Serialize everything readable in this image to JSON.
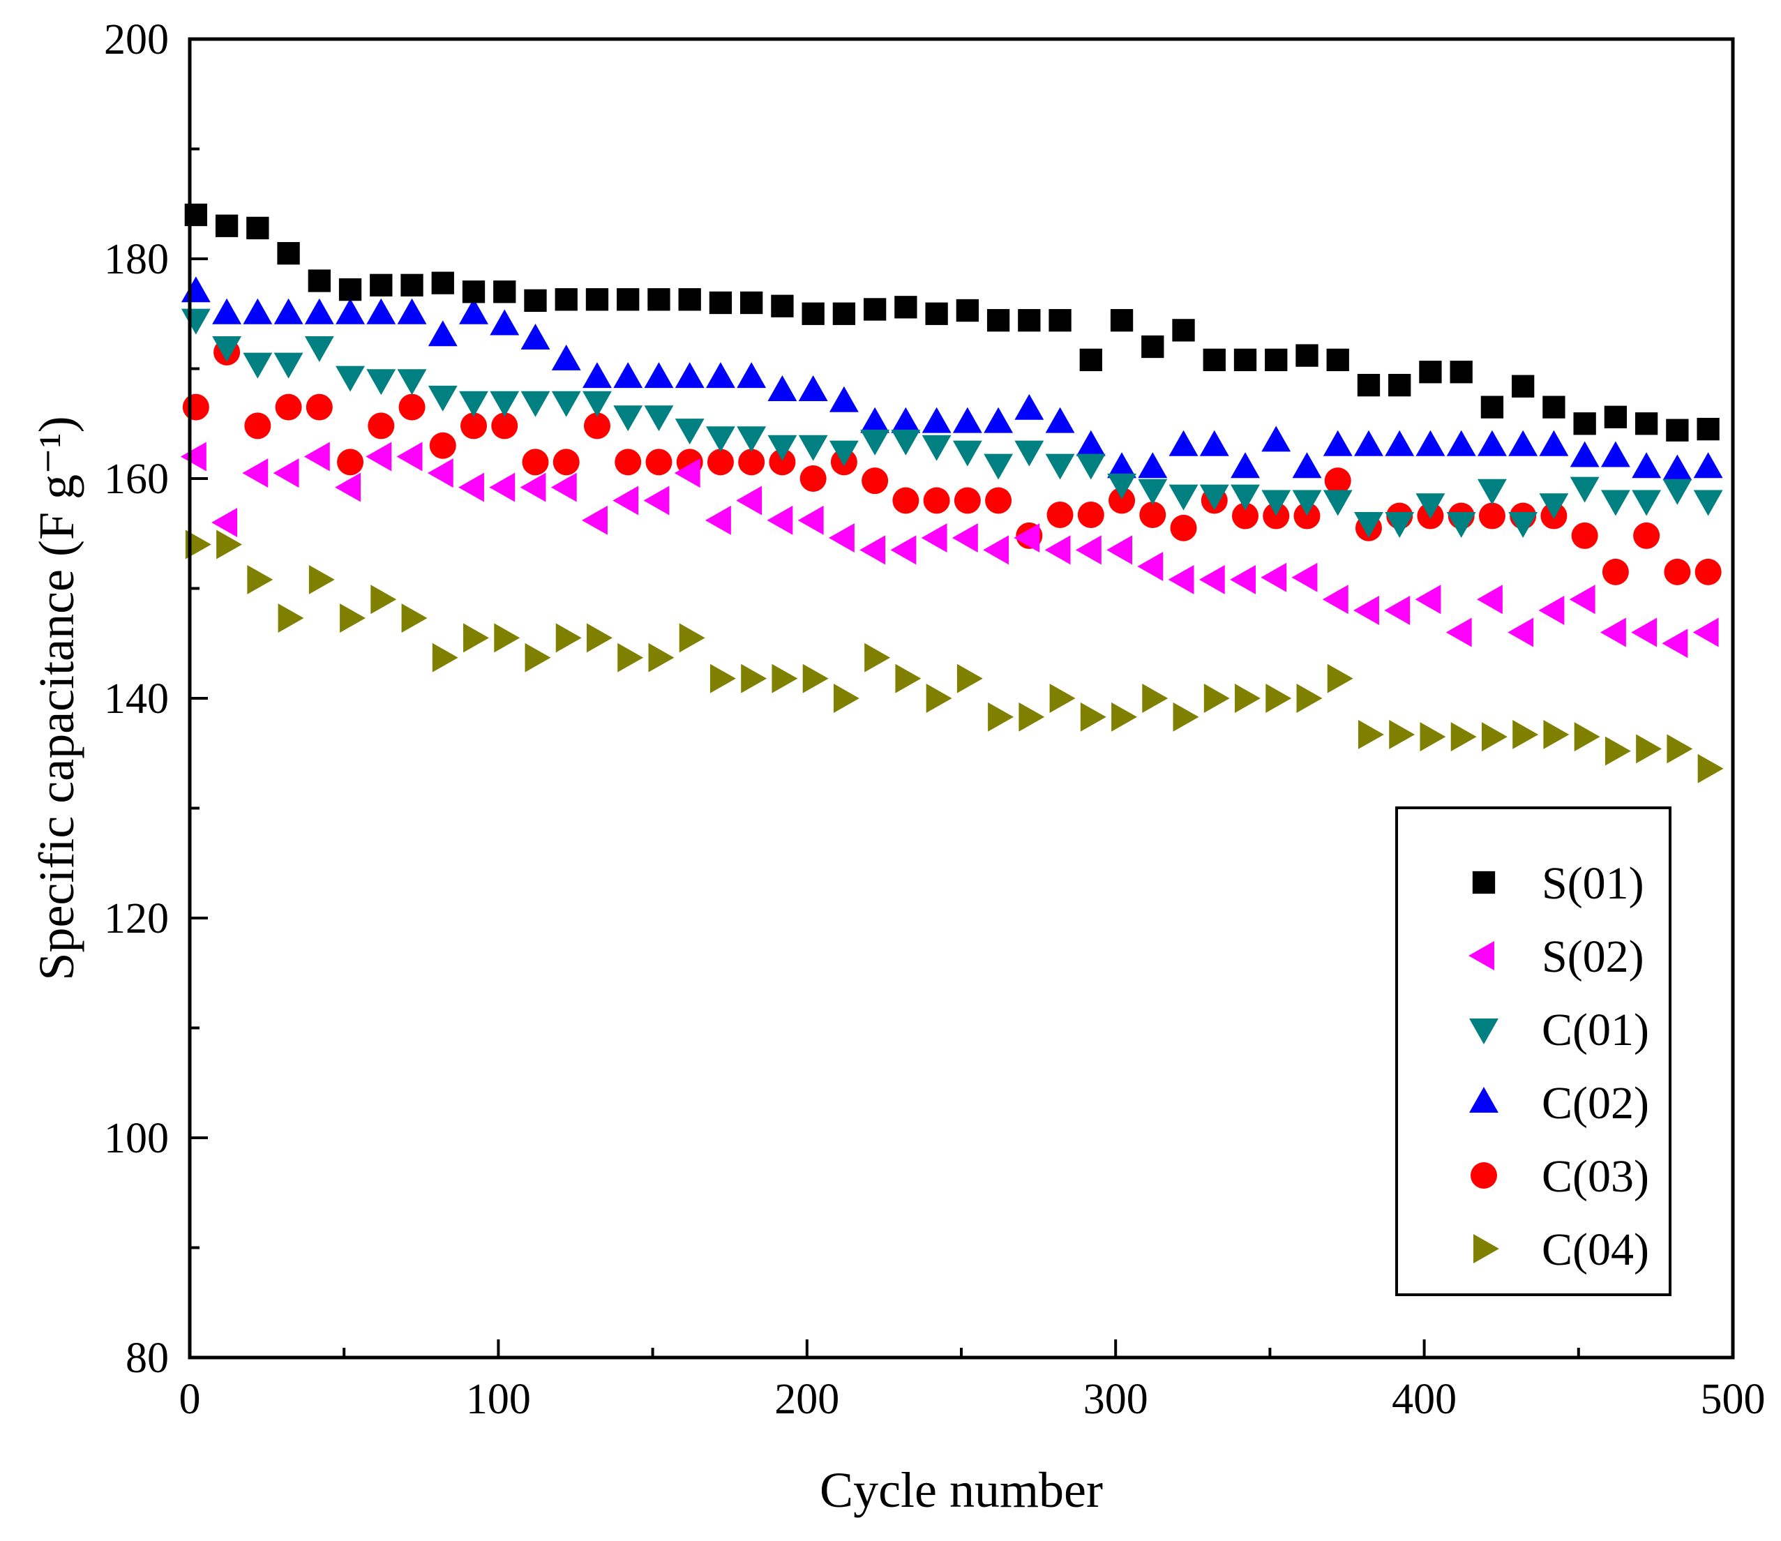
{
  "chart_data": {
    "type": "scatter",
    "title": "",
    "xlabel": "Cycle number",
    "ylabel": "Specific capacitance (F g⁻¹)",
    "xlim": [
      0,
      500
    ],
    "ylim": [
      80,
      200
    ],
    "x_ticks": [
      0,
      100,
      200,
      300,
      400,
      500
    ],
    "y_ticks": [
      80,
      100,
      120,
      140,
      160,
      180,
      200
    ],
    "grid": false,
    "legend_position": "bottom-right",
    "x": [
      2,
      12,
      22,
      32,
      42,
      52,
      62,
      72,
      82,
      92,
      102,
      112,
      122,
      132,
      142,
      152,
      162,
      172,
      182,
      192,
      202,
      212,
      222,
      232,
      242,
      252,
      262,
      272,
      282,
      292,
      302,
      312,
      322,
      332,
      342,
      352,
      362,
      372,
      382,
      392,
      402,
      412,
      422,
      432,
      442,
      452,
      462,
      472,
      482,
      492
    ],
    "series": [
      {
        "name": "S(01)",
        "marker": "square",
        "color": "#000000",
        "values": [
          184,
          183,
          182.8,
          180.5,
          178,
          177.2,
          177.6,
          177.6,
          177.8,
          177,
          177,
          176.2,
          176.3,
          176.3,
          176.3,
          176.3,
          176.3,
          176,
          176,
          175.7,
          175,
          175,
          175.4,
          175.6,
          175,
          175.3,
          174.4,
          174.4,
          174.4,
          170.8,
          174.4,
          172,
          173.5,
          170.8,
          170.8,
          170.8,
          171.2,
          170.8,
          168.5,
          168.5,
          169.7,
          169.7,
          166.5,
          168.4,
          166.5,
          165,
          165.6,
          165,
          164.4,
          164.5
        ]
      },
      {
        "name": "S(02)",
        "marker": "triangle-left",
        "color": "#ff00ff",
        "values": [
          162,
          156,
          160.5,
          160.5,
          162,
          159.2,
          162,
          162,
          160.5,
          159.2,
          159.2,
          159.2,
          159.2,
          156.2,
          158,
          158,
          160.5,
          156.2,
          158,
          156.2,
          156.2,
          154.6,
          153.5,
          153.5,
          154.6,
          154.6,
          153.5,
          154.6,
          153.5,
          153.5,
          153.5,
          152,
          150.8,
          150.8,
          150.8,
          151,
          151,
          149,
          148,
          148,
          149,
          146,
          149,
          146,
          148,
          149,
          146,
          146,
          145,
          146
        ]
      },
      {
        "name": "C(01)",
        "marker": "triangle-down",
        "color": "#008080",
        "values": [
          174.5,
          172,
          170.5,
          170.5,
          172,
          169.3,
          169,
          169,
          167.5,
          167,
          167,
          167,
          167,
          167,
          165.7,
          165.7,
          164.5,
          163.8,
          163.8,
          163,
          163,
          162.5,
          163.5,
          163.5,
          163,
          162.5,
          161.3,
          162.5,
          161.3,
          161.3,
          159.5,
          159,
          158.5,
          158.5,
          158.5,
          158,
          158,
          158,
          156,
          156,
          157.7,
          156,
          159,
          156,
          157.7,
          159.2,
          158,
          158,
          159,
          158
        ]
      },
      {
        "name": "C(02)",
        "marker": "triangle-up",
        "color": "#0000ff",
        "values": [
          177,
          175,
          175,
          175,
          175,
          175,
          175,
          175,
          173,
          175,
          174,
          172.7,
          170.8,
          169.2,
          169.2,
          169.2,
          169.2,
          169.2,
          169.2,
          168,
          168,
          167,
          165.1,
          165.1,
          165.1,
          165.1,
          165.1,
          166.3,
          165.1,
          163,
          161,
          161,
          163,
          163,
          161,
          163.4,
          161,
          163,
          163,
          163,
          163,
          163,
          163,
          163,
          163,
          162,
          162,
          161,
          160.8,
          161
        ]
      },
      {
        "name": "C(03)",
        "marker": "circle",
        "color": "#ff0000",
        "values": [
          166.5,
          171.5,
          164.8,
          166.5,
          166.5,
          161.5,
          164.8,
          166.5,
          163,
          164.8,
          164.8,
          161.5,
          161.5,
          164.8,
          161.5,
          161.5,
          161.5,
          161.5,
          161.5,
          161.5,
          160,
          161.5,
          159.8,
          158,
          158,
          158,
          158,
          154.8,
          156.7,
          156.7,
          158,
          156.7,
          155.5,
          158,
          156.6,
          156.6,
          156.6,
          159.8,
          155.5,
          156.6,
          156.6,
          156.6,
          156.6,
          156.6,
          156.6,
          154.8,
          151.5,
          154.8,
          151.5,
          151.5
        ]
      },
      {
        "name": "C(04)",
        "marker": "triangle-right",
        "color": "#808000",
        "values": [
          154,
          154,
          150.8,
          147.3,
          150.8,
          147.3,
          149,
          147.3,
          143.7,
          145.5,
          145.5,
          143.7,
          145.5,
          145.5,
          143.7,
          143.7,
          145.5,
          141.8,
          141.8,
          141.8,
          141.8,
          140,
          143.7,
          141.8,
          140,
          141.8,
          138.3,
          138.3,
          140,
          138.3,
          138.3,
          140,
          138.3,
          140,
          140,
          140,
          140,
          141.8,
          136.7,
          136.7,
          136.5,
          136.5,
          136.5,
          136.7,
          136.7,
          136.5,
          135.2,
          135.4,
          135.4,
          133.6
        ]
      }
    ]
  }
}
